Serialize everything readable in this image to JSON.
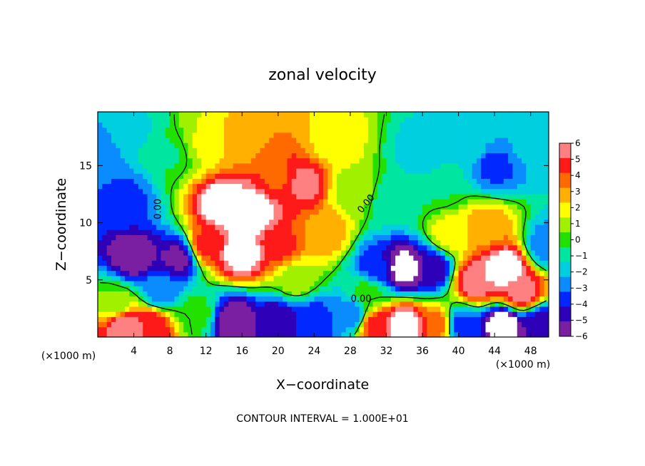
{
  "chart_data": {
    "type": "heatmap",
    "title": "zonal velocity",
    "xlabel": "X−coordinate",
    "ylabel": "Z−coordinate",
    "x_unit_left": "(×1000 m)",
    "x_unit_right": "(×1000 m)",
    "xlim": [
      0,
      50
    ],
    "ylim": [
      0,
      19.7
    ],
    "x_ticks": [
      "4",
      "8",
      "12",
      "16",
      "20",
      "24",
      "28",
      "32",
      "36",
      "40",
      "44",
      "48"
    ],
    "x_tick_values": [
      4,
      8,
      12,
      16,
      20,
      24,
      28,
      32,
      36,
      40,
      44,
      48
    ],
    "y_ticks": [
      "5",
      "10",
      "15"
    ],
    "y_tick_values": [
      5,
      10,
      15
    ],
    "colorbar": {
      "ticks": [
        "6",
        "5",
        "4",
        "3",
        "2",
        "1",
        "0",
        "−1",
        "−2",
        "−3",
        "−4",
        "−5",
        "−6"
      ],
      "min": -6,
      "max": 6,
      "colors": [
        "#7a1fa2",
        "#2e00b8",
        "#0028ff",
        "#0a8cff",
        "#00cfe0",
        "#00e6a0",
        "#22e000",
        "#a0f000",
        "#ffff00",
        "#ffb000",
        "#ff6a00",
        "#ff1a1a",
        "#ff8080"
      ]
    },
    "contour_labels": [
      "0.00",
      "0.00",
      "0.00"
    ],
    "contour_interval_note": "CONTOUR INTERVAL = 1.000E+01",
    "field_features": [
      {
        "x": 0,
        "z": 16,
        "u": -3
      },
      {
        "x": 3,
        "z": 12,
        "u": -3.5
      },
      {
        "x": 4,
        "z": 18,
        "u": -1.5
      },
      {
        "x": 8,
        "z": 16,
        "u": -0.5
      },
      {
        "x": 4,
        "z": 7,
        "u": -6
      },
      {
        "x": 9,
        "z": 7,
        "u": -5.5
      },
      {
        "x": 7,
        "z": 4,
        "u": -3
      },
      {
        "x": 2,
        "z": 3,
        "u": 0.5
      },
      {
        "x": 3,
        "z": 1,
        "u": 6
      },
      {
        "x": 6,
        "z": 1,
        "u": 5
      },
      {
        "x": 11,
        "z": 2,
        "u": 0
      },
      {
        "x": 14,
        "z": 11.5,
        "u": 7
      },
      {
        "x": 17,
        "z": 11,
        "u": 7
      },
      {
        "x": 16,
        "z": 7.5,
        "u": 7
      },
      {
        "x": 12,
        "z": 8,
        "u": 4.5
      },
      {
        "x": 20,
        "z": 8,
        "u": 4.5
      },
      {
        "x": 20,
        "z": 14,
        "u": 4
      },
      {
        "x": 23,
        "z": 13.5,
        "u": 5.5
      },
      {
        "x": 16,
        "z": 17,
        "u": 3
      },
      {
        "x": 12,
        "z": 17,
        "u": 1.5
      },
      {
        "x": 25,
        "z": 9,
        "u": 3
      },
      {
        "x": 22,
        "z": 5,
        "u": 1
      },
      {
        "x": 26,
        "z": 17,
        "u": 2
      },
      {
        "x": 28,
        "z": 13,
        "u": 1
      },
      {
        "x": 15,
        "z": 1.5,
        "u": -6
      },
      {
        "x": 20,
        "z": 1.5,
        "u": -5
      },
      {
        "x": 24,
        "z": 1.5,
        "u": -4
      },
      {
        "x": 28,
        "z": 2,
        "u": -3
      },
      {
        "x": 30,
        "z": 4,
        "u": 0
      },
      {
        "x": 33,
        "z": 12,
        "u": -1
      },
      {
        "x": 36,
        "z": 16,
        "u": -2
      },
      {
        "x": 38,
        "z": 13,
        "u": -0.5
      },
      {
        "x": 34,
        "z": 6,
        "u": -7
      },
      {
        "x": 31,
        "z": 6,
        "u": -4
      },
      {
        "x": 37,
        "z": 6,
        "u": -5
      },
      {
        "x": 34,
        "z": 1,
        "u": 7
      },
      {
        "x": 31,
        "z": 1,
        "u": 5
      },
      {
        "x": 38,
        "z": 1,
        "u": 4
      },
      {
        "x": 44,
        "z": 15,
        "u": -3.5
      },
      {
        "x": 48,
        "z": 17,
        "u": -2
      },
      {
        "x": 41,
        "z": 17,
        "u": -1.5
      },
      {
        "x": 43,
        "z": 9.5,
        "u": 3
      },
      {
        "x": 39,
        "z": 9,
        "u": 2
      },
      {
        "x": 45,
        "z": 6,
        "u": 7
      },
      {
        "x": 42,
        "z": 5,
        "u": 6
      },
      {
        "x": 47,
        "z": 4,
        "u": 5.5
      },
      {
        "x": 50,
        "z": 8,
        "u": -3
      },
      {
        "x": 45,
        "z": 1,
        "u": -7
      },
      {
        "x": 40,
        "z": 1,
        "u": -4
      },
      {
        "x": 49,
        "z": 1,
        "u": -5
      }
    ]
  }
}
